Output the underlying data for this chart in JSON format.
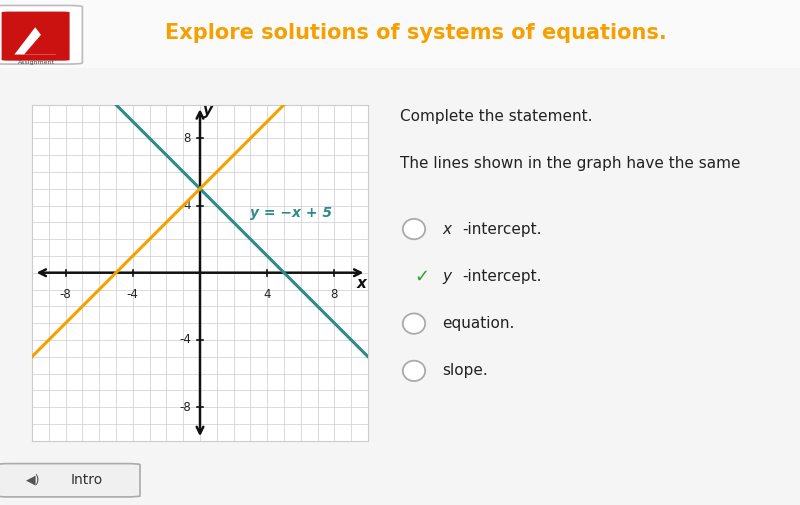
{
  "title": "Explore solutions of systems of equations.",
  "title_color": "#F5A000",
  "bg_color": "#E8E8E8",
  "content_bg": "#F5F5F5",
  "graph_bg": "#FFFFFF",
  "header_bg": "#F0F0F0",
  "grid_color": "#CCCCCC",
  "axis_color": "#111111",
  "line1_slope": -1,
  "line1_intercept": 5,
  "line1_color": "#2E8B8B",
  "line2_slope": 1,
  "line2_intercept": 5,
  "line2_color": "#F5A000",
  "line_label": "y = −x + 5",
  "line_label_color": "#2E8B8B",
  "xmin": -10,
  "xmax": 10,
  "ymin": -10,
  "ymax": 10,
  "tick_labels": [
    -8,
    -4,
    4,
    8
  ],
  "question_text1": "Complete the statement.",
  "question_text2": "The lines shown in the graph have the same",
  "options": [
    "x-intercept.",
    "y-intercept.",
    "equation.",
    "slope."
  ],
  "correct_option": 1,
  "footer_text": "Intro"
}
